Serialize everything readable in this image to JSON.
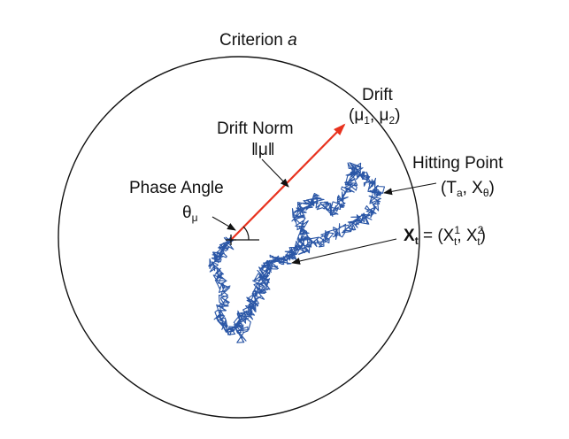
{
  "labels": {
    "criterion": "Criterion",
    "criterion_var": "a",
    "drift": "Drift",
    "drift_vector": "(μ",
    "drift_sub1": "1",
    "drift_comma": ", μ",
    "drift_sub2": "2",
    "drift_close": ")",
    "drift_norm": "Drift Norm",
    "drift_norm_symbol": "‖μ‖",
    "phase_angle": "Phase Angle",
    "theta": "θ",
    "theta_sub": "μ",
    "hitting_point": "Hitting Point",
    "hit_open": "(T",
    "hit_sub_a": "a",
    "hit_mid": ", X",
    "hit_sub_theta": "θ",
    "hit_close": ")",
    "xt_bold": "X",
    "xt_bold_sub": "t",
    "xt_eq": " = (X",
    "xt_sup1": "1",
    "xt_sub1": "t",
    "xt_comma": ", X",
    "xt_sup2": "2",
    "xt_sub2": "t",
    "xt_close": ")"
  },
  "colors": {
    "circle": "#111111",
    "drift_arrow": "#e8321e",
    "path": "#2a56a6",
    "pointer": "#111111"
  }
}
